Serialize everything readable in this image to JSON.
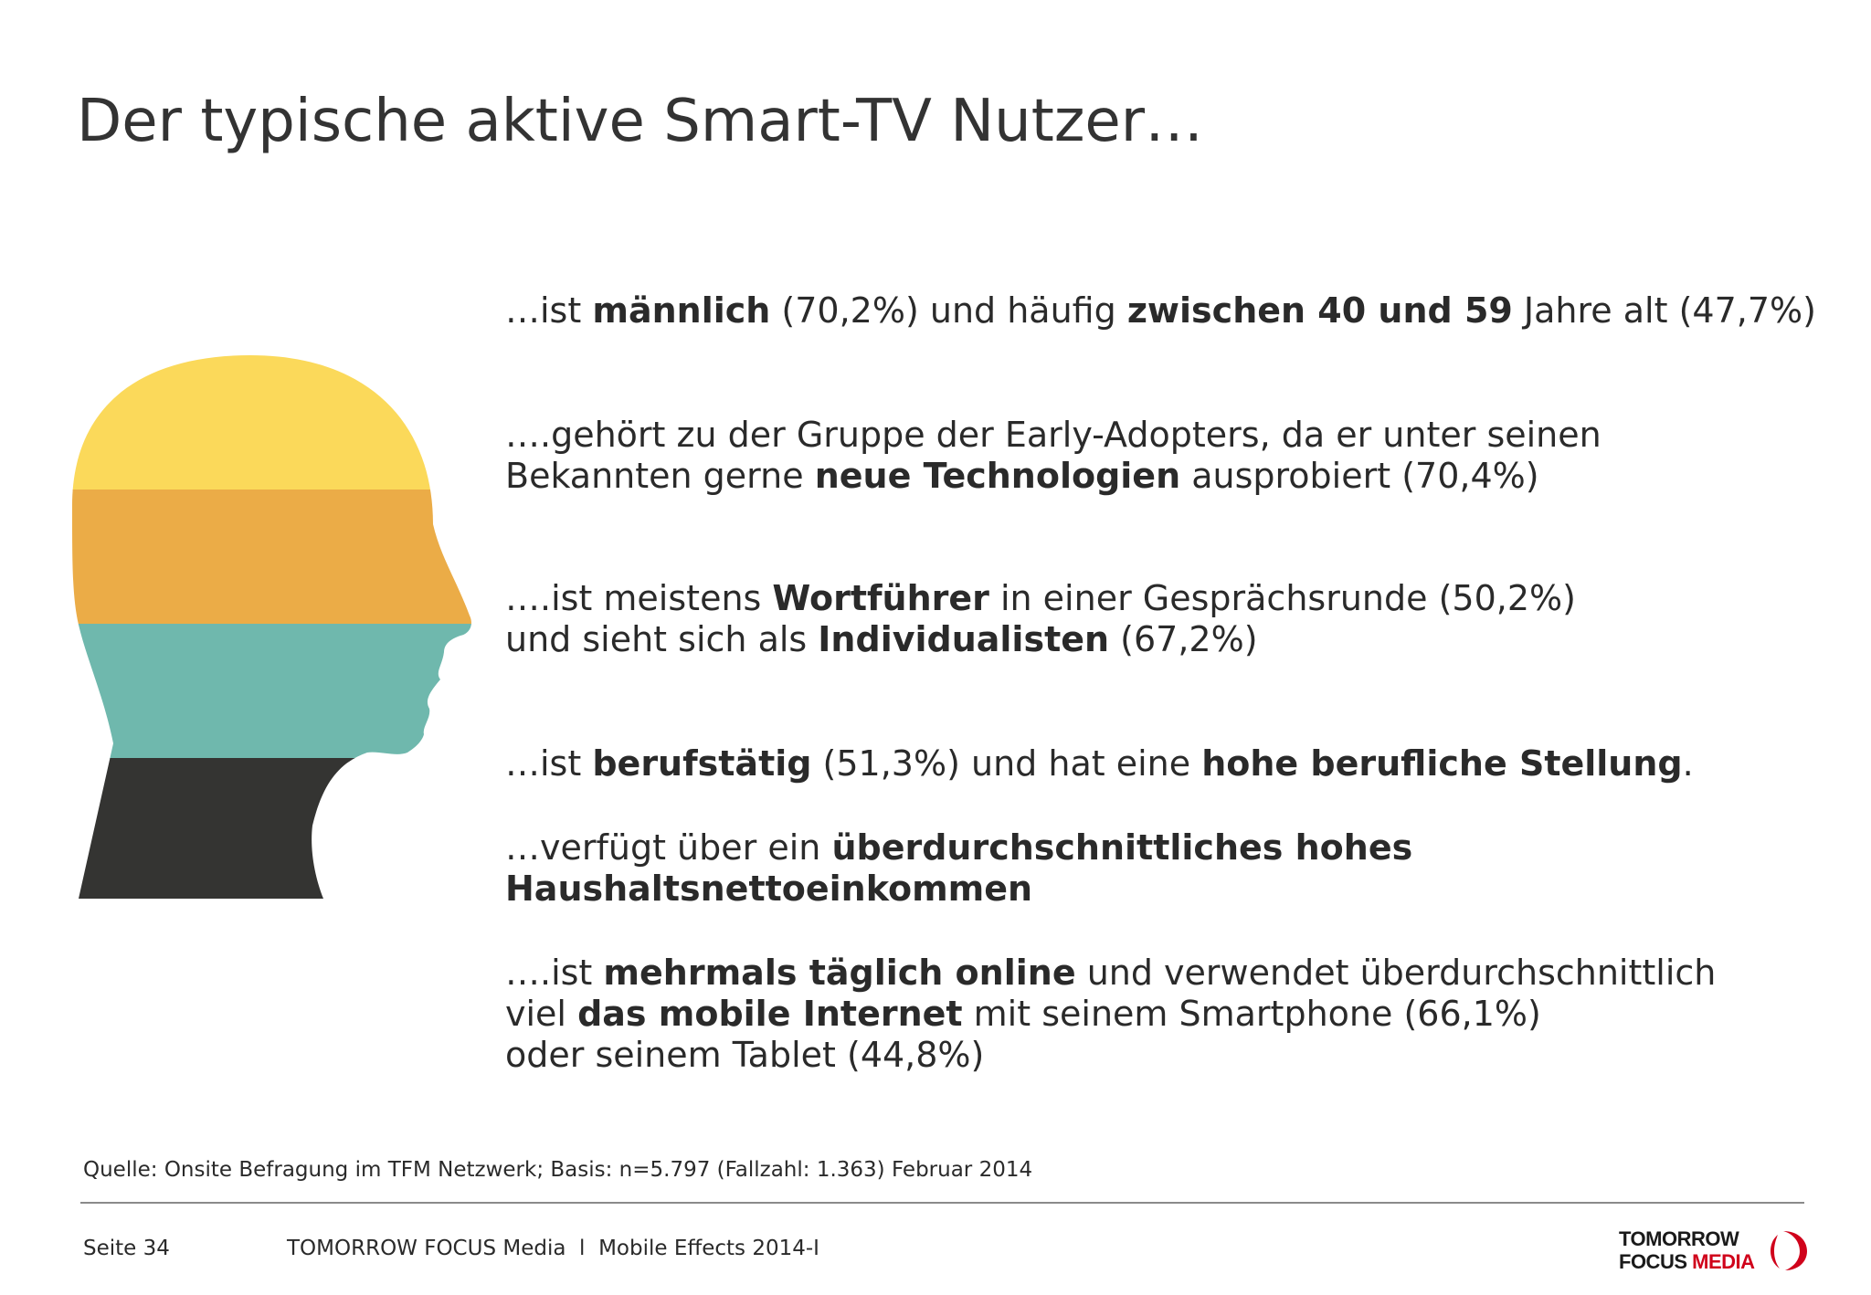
{
  "header": {
    "title": "Der typische aktive Smart-TV Nutzer…"
  },
  "statements": [
    {
      "lines": [
        [
          {
            "t": "…ist ",
            "b": false
          },
          {
            "t": "männlich",
            "b": true
          },
          {
            "t": " (70,2%) und häufig ",
            "b": false
          },
          {
            "t": "zwischen 40 und 59",
            "b": true
          },
          {
            "t": " Jahre alt (47,7%)",
            "b": false
          }
        ]
      ]
    },
    {
      "lines": [
        [
          {
            "t": "….gehört zu der Gruppe der Early-Adopters, da er unter seinen",
            "b": false
          }
        ],
        [
          {
            "t": "Bekannten gerne ",
            "b": false
          },
          {
            "t": "neue Technologien",
            "b": true
          },
          {
            "t": " ausprobiert (70,4%)",
            "b": false
          }
        ]
      ]
    },
    {
      "lines": [
        [
          {
            "t": "….ist meistens ",
            "b": false
          },
          {
            "t": "Wortführer",
            "b": true
          },
          {
            "t": " in einer Gesprächsrunde (50,2%)",
            "b": false
          }
        ],
        [
          {
            "t": "und sieht sich als ",
            "b": false
          },
          {
            "t": "Individualisten",
            "b": true
          },
          {
            "t": " (67,2%)",
            "b": false
          }
        ]
      ]
    },
    {
      "lines": [
        [
          {
            "t": "…ist ",
            "b": false
          },
          {
            "t": "berufstätig",
            "b": true
          },
          {
            "t": " (51,3%) und hat eine ",
            "b": false
          },
          {
            "t": "hohe berufliche Stellung",
            "b": true
          },
          {
            "t": ".",
            "b": false
          }
        ]
      ]
    },
    {
      "lines": [
        [
          {
            "t": "…verfügt über ein ",
            "b": false
          },
          {
            "t": "überdurchschnittliches hohes",
            "b": true
          }
        ],
        [
          {
            "t": "Haushaltsnettoeinkommen",
            "b": true
          }
        ]
      ]
    },
    {
      "lines": [
        [
          {
            "t": "….ist ",
            "b": false
          },
          {
            "t": "mehrmals täglich online",
            "b": true
          },
          {
            "t": " und verwendet überdurchschnittlich",
            "b": false
          }
        ],
        [
          {
            "t": "viel ",
            "b": false
          },
          {
            "t": "das mobile Internet",
            "b": true
          },
          {
            "t": " mit seinem Smartphone (66,1%)",
            "b": false
          }
        ],
        [
          {
            "t": "oder seinem Tablet (44,8%)",
            "b": false
          }
        ]
      ]
    }
  ],
  "source": "Quelle: Onsite Befragung im TFM Netzwerk; Basis: n=5.797 (Fallzahl: 1.363) Februar 2014",
  "footer": {
    "page": "Seite 34",
    "publication": "TOMORROW FOCUS Media  l  Mobile Effects 2014-I"
  },
  "logo": {
    "line1": "TOMORROW",
    "line2_a": "FOCUS ",
    "line2_b": "MEDIA"
  },
  "colors": {
    "band_yellow": "#fbd95a",
    "band_orange": "#ebac47",
    "band_teal": "#6fb8ad",
    "band_dark": "#343432",
    "brand_red": "#d0021b"
  }
}
